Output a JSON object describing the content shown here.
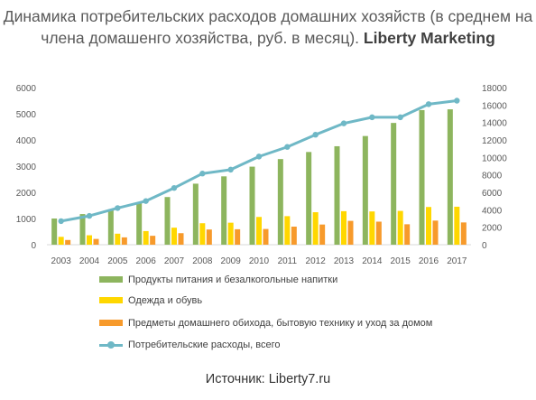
{
  "title": {
    "main": "Динамика потребительских расходов домашних хозяйств (в среднем на члена домашенго хозяйства, руб. в месяц).",
    "brand": "Liberty Marketing"
  },
  "source": "Источник: Liberty7.ru",
  "colors": {
    "food": "#8db55e",
    "clothing": "#ffd700",
    "household": "#f79a2b",
    "total": "#6fb8c6",
    "axis_text": "#595959",
    "axis_line": "#d9d9d9"
  },
  "chart_data": {
    "type": "bar",
    "combo": "bar+line",
    "categories": [
      "2003",
      "2004",
      "2005",
      "2006",
      "2007",
      "2008",
      "2009",
      "2010",
      "2011",
      "2012",
      "2013",
      "2014",
      "2015",
      "2016",
      "2017"
    ],
    "left_axis": {
      "ylim": [
        0,
        6000
      ],
      "ticks": [
        "0",
        "1000",
        "2000",
        "3000",
        "4000",
        "5000",
        "6000"
      ]
    },
    "right_axis": {
      "ylim": [
        0,
        18000
      ],
      "ticks": [
        "0",
        "2000",
        "4000",
        "6000",
        "8000",
        "10000",
        "12000",
        "14000",
        "16000",
        "18000"
      ]
    },
    "grid": false,
    "legend_position": "bottom",
    "series": [
      {
        "name": "Продукты питания и безалкогольные напитки",
        "type": "bar",
        "axis": "left",
        "values": [
          1000,
          1170,
          1350,
          1580,
          1820,
          2330,
          2610,
          2980,
          3270,
          3540,
          3760,
          4150,
          4650,
          5140,
          5170
        ]
      },
      {
        "name": "Одежда и обувь",
        "type": "bar",
        "axis": "left",
        "values": [
          300,
          360,
          420,
          520,
          650,
          820,
          840,
          1060,
          1090,
          1240,
          1280,
          1270,
          1290,
          1440,
          1450
        ]
      },
      {
        "name": "Предметы домашнего обихода, бытовую технику и уход за домом",
        "type": "bar",
        "axis": "left",
        "values": [
          180,
          220,
          280,
          340,
          440,
          580,
          590,
          600,
          690,
          770,
          910,
          880,
          780,
          920,
          850
        ]
      },
      {
        "name": "Потребительские расходы, всего",
        "type": "line",
        "axis": "right",
        "values": [
          2700,
          3300,
          4200,
          5000,
          6500,
          8150,
          8600,
          10100,
          11200,
          12600,
          13900,
          14600,
          14600,
          16100,
          16500
        ]
      }
    ]
  }
}
